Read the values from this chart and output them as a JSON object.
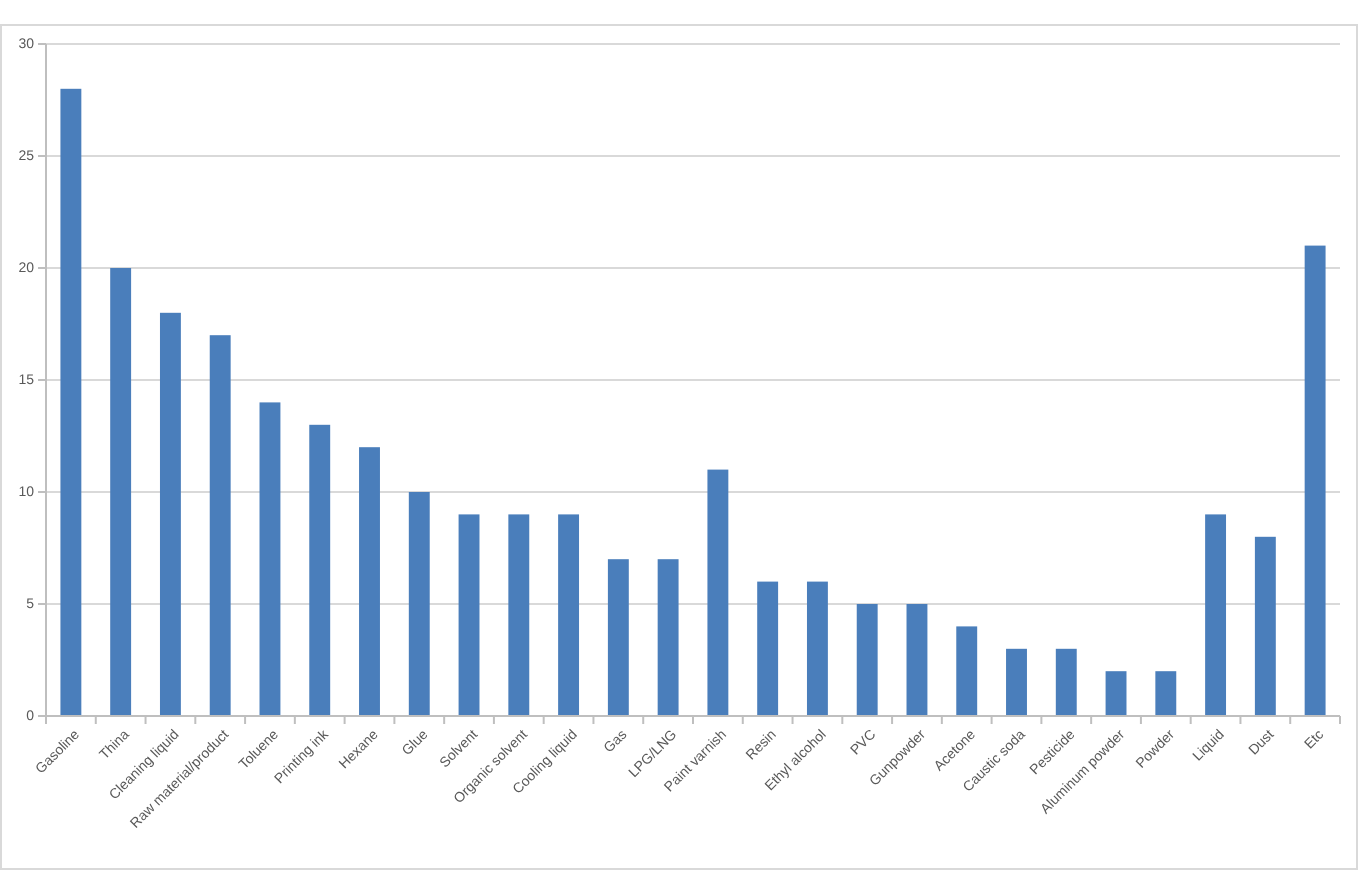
{
  "chart_data": {
    "type": "bar",
    "categories": [
      "Gasoline",
      "Thina",
      "Cleaning liquid",
      "Raw material/product",
      "Toluene",
      "Printing ink",
      "Hexane",
      "Glue",
      "Solvent",
      "Organic solvent",
      "Cooling liquid",
      "Gas",
      "LPG/LNG",
      "Paint varnish",
      "Resin",
      "Ethyl alcohol",
      "PVC",
      "Gunpowder",
      "Acetone",
      "Caustic soda",
      "Pesticide",
      "Aluminum powder",
      "Powder",
      "Liquid",
      "Dust",
      "Etc"
    ],
    "values": [
      28,
      20,
      18,
      17,
      14,
      13,
      12,
      10,
      9,
      9,
      9,
      7,
      7,
      11,
      6,
      6,
      5,
      5,
      4,
      3,
      3,
      2,
      2,
      9,
      8,
      21
    ],
    "color": "#4a7ebb",
    "ylim": [
      0,
      30
    ],
    "yticks": [
      0,
      5,
      10,
      15,
      20,
      25,
      30
    ],
    "grid": "y"
  }
}
